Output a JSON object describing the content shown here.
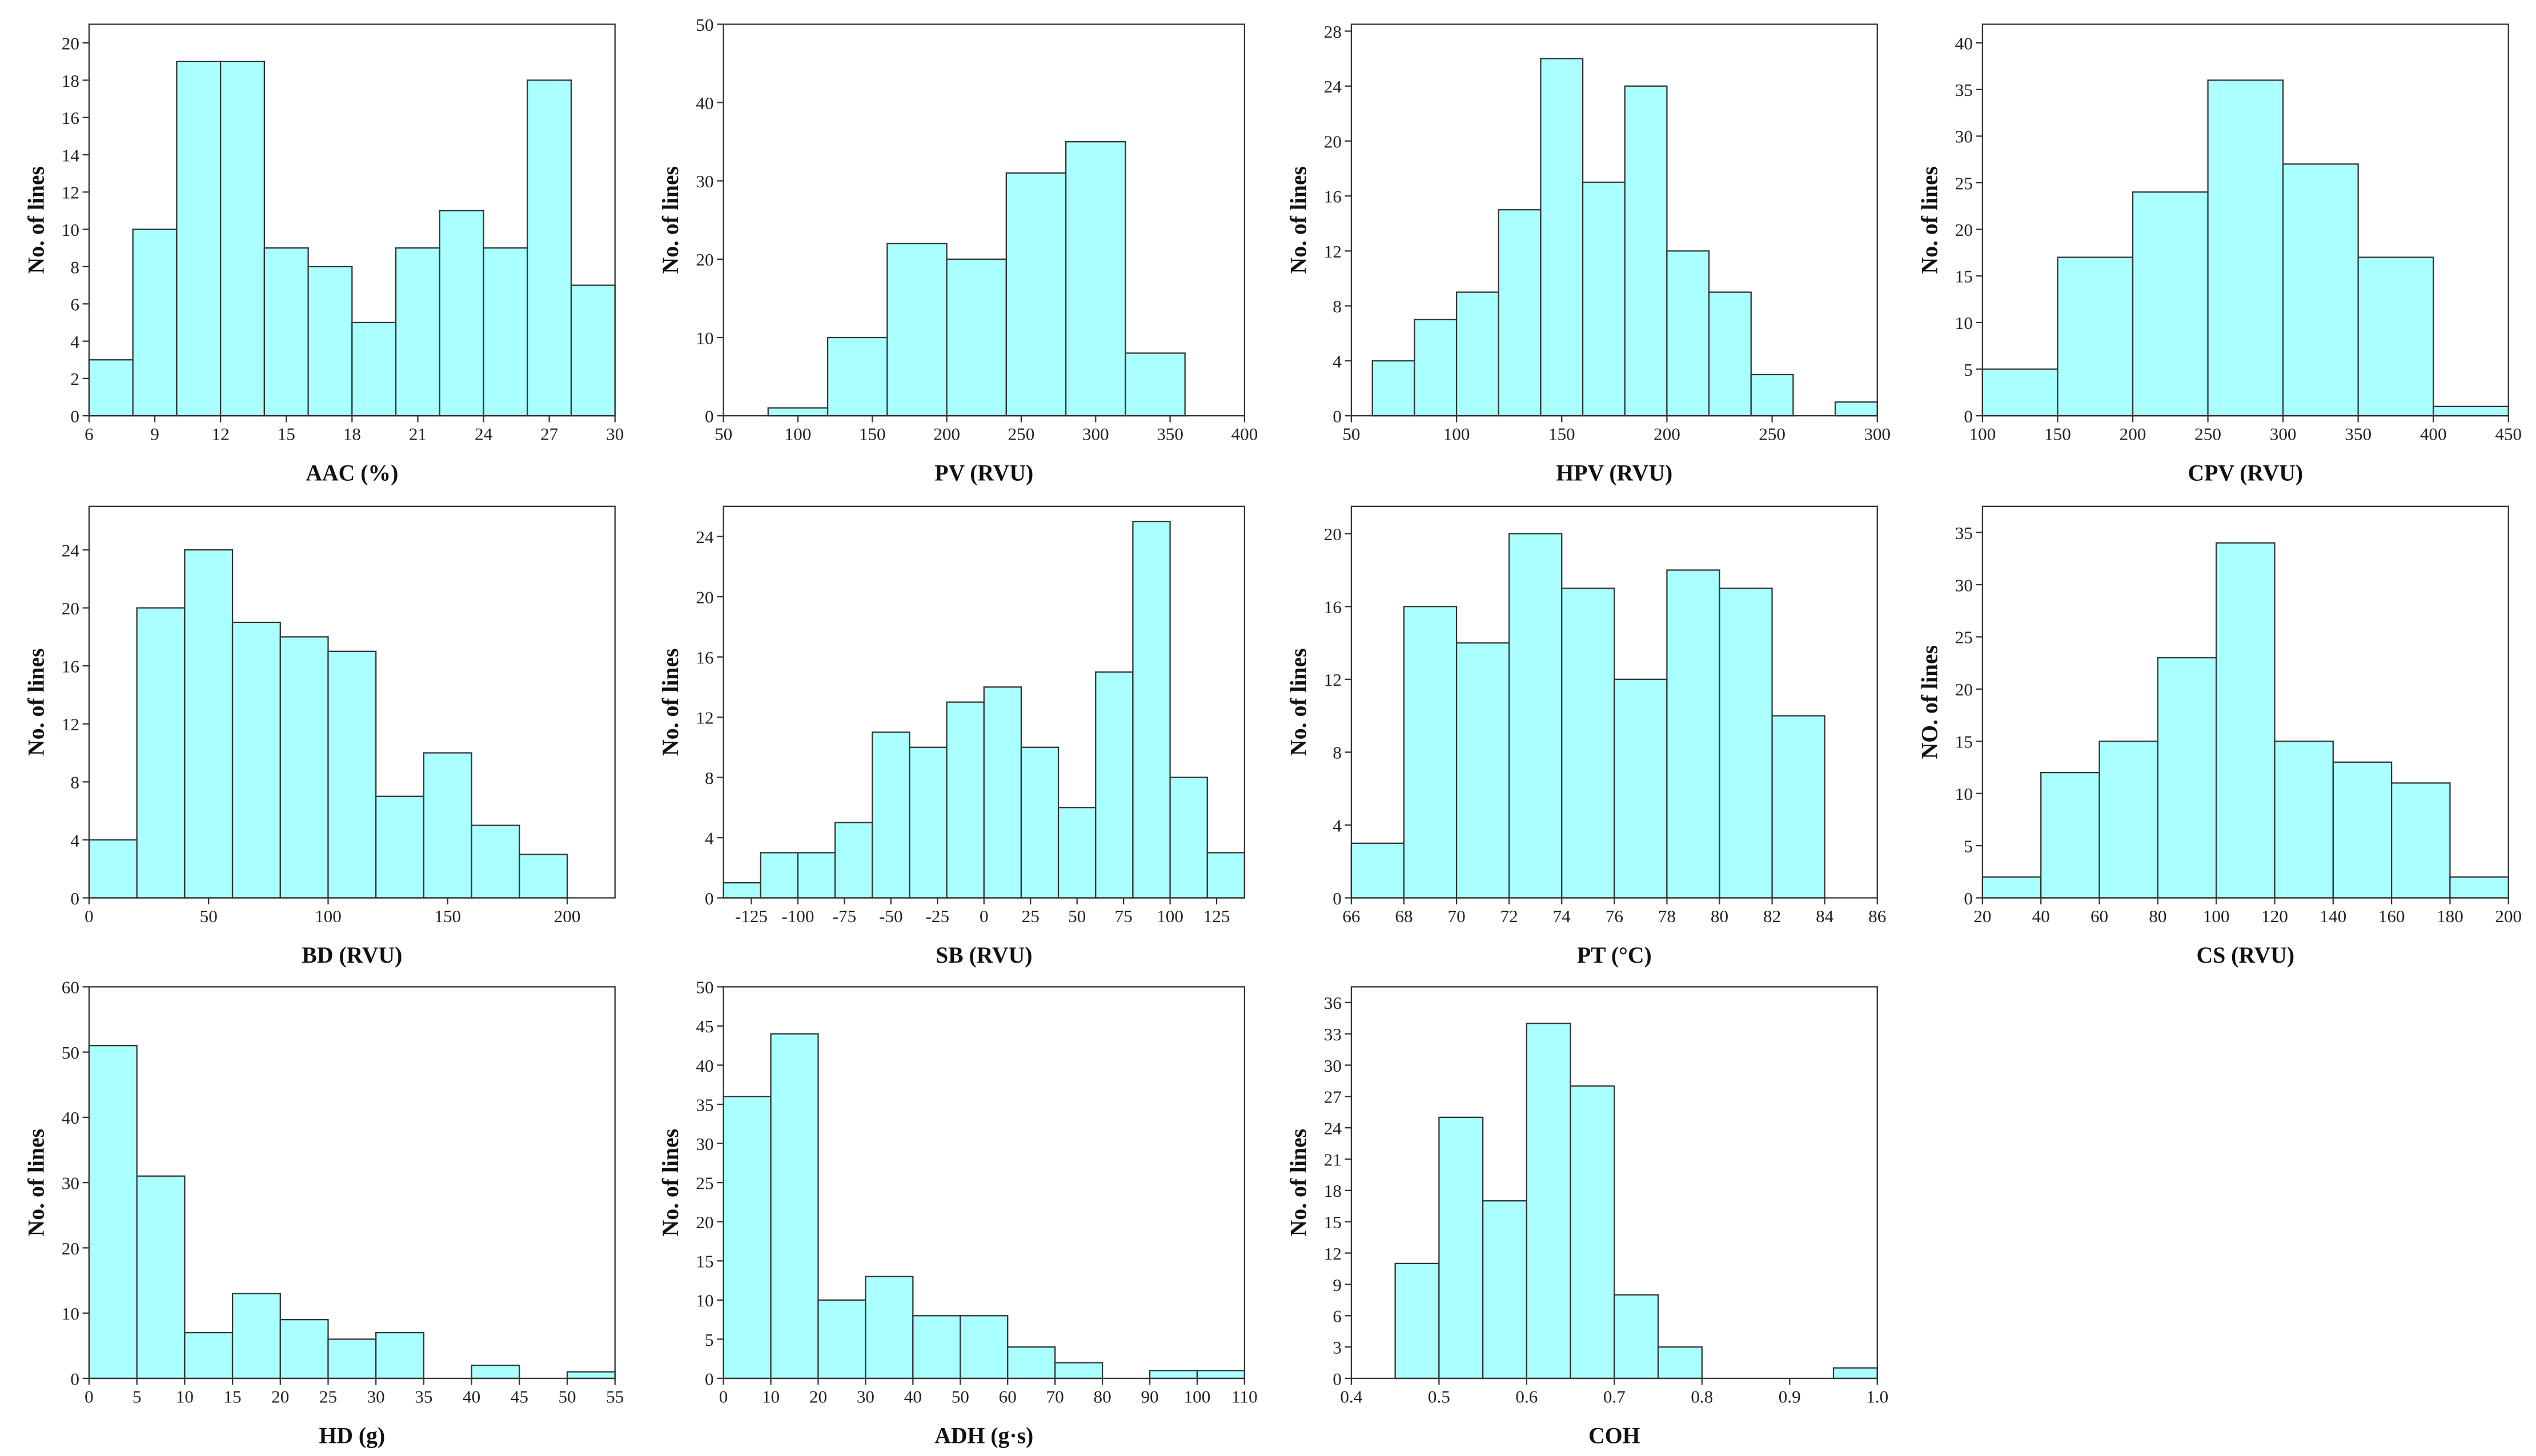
{
  "chart_data": [
    {
      "type": "histogram",
      "xlabel": "AAC (%)",
      "ylabel": "No. of lines",
      "color": "#aaffff",
      "bins": [
        6,
        8,
        10,
        12,
        14,
        16,
        18,
        20,
        22,
        24,
        26,
        28,
        30
      ],
      "counts": [
        3,
        10,
        19,
        19,
        9,
        8,
        5,
        9,
        11,
        9,
        18,
        7
      ],
      "xlim": [
        6,
        30
      ],
      "xticks": [
        6,
        9,
        12,
        15,
        18,
        21,
        24,
        27,
        30
      ],
      "ylim": [
        0,
        21
      ],
      "yticks": [
        0,
        2,
        4,
        6,
        8,
        10,
        12,
        14,
        16,
        18,
        20
      ]
    },
    {
      "type": "histogram",
      "xlabel": "PV (RVU)",
      "ylabel": "No. of lines",
      "color": "#aaffff",
      "bins": [
        80,
        120,
        160,
        200,
        240,
        280,
        320,
        360
      ],
      "counts": [
        1,
        10,
        22,
        20,
        31,
        35,
        8
      ],
      "xlim": [
        50,
        400
      ],
      "xticks": [
        50,
        100,
        150,
        200,
        250,
        300,
        350,
        400
      ],
      "ylim": [
        0,
        50
      ],
      "yticks": [
        0,
        10,
        20,
        30,
        40,
        50
      ]
    },
    {
      "type": "histogram",
      "xlabel": "HPV (RVU)",
      "ylabel": "No. of lines",
      "color": "#aaffff",
      "bins": [
        60,
        80,
        100,
        120,
        140,
        160,
        180,
        200,
        220,
        240,
        260,
        280,
        300
      ],
      "counts": [
        4,
        7,
        9,
        15,
        26,
        17,
        24,
        12,
        9,
        3,
        0,
        1
      ],
      "xlim": [
        50,
        300
      ],
      "xticks": [
        50,
        100,
        150,
        200,
        250,
        300
      ],
      "ylim": [
        0,
        28.5
      ],
      "yticks": [
        0,
        4,
        8,
        12,
        16,
        20,
        24,
        28
      ]
    },
    {
      "type": "histogram",
      "xlabel": "CPV (RVU)",
      "ylabel": "No. of lines",
      "color": "#aaffff",
      "bins": [
        100,
        150,
        200,
        250,
        300,
        350,
        400,
        450
      ],
      "counts": [
        5,
        17,
        24,
        36,
        27,
        17,
        1
      ],
      "xlim": [
        100,
        450
      ],
      "xticks": [
        100,
        150,
        200,
        250,
        300,
        350,
        400,
        450
      ],
      "ylim": [
        0,
        42
      ],
      "yticks": [
        0,
        5,
        10,
        15,
        20,
        25,
        30,
        35,
        40
      ]
    },
    {
      "type": "histogram",
      "xlabel": "BD (RVU)",
      "ylabel": "No. of lines",
      "color": "#aaffff",
      "bins": [
        0,
        20,
        40,
        60,
        80,
        100,
        120,
        140,
        160,
        180,
        200
      ],
      "counts": [
        4,
        20,
        24,
        19,
        18,
        17,
        7,
        10,
        5,
        3
      ],
      "xlim": [
        0,
        220
      ],
      "xticks": [
        0,
        50,
        100,
        150,
        200
      ],
      "ylim": [
        0,
        27
      ],
      "yticks": [
        0,
        4,
        8,
        12,
        16,
        20,
        24
      ]
    },
    {
      "type": "histogram",
      "xlabel": "SB (RVU)",
      "ylabel": "No. of lines",
      "color": "#aaffff",
      "bins": [
        -140,
        -120,
        -100,
        -80,
        -60,
        -40,
        -20,
        0,
        20,
        40,
        60,
        80,
        100,
        120,
        140
      ],
      "counts": [
        1,
        3,
        3,
        5,
        11,
        10,
        13,
        14,
        10,
        6,
        15,
        25,
        8,
        3
      ],
      "xlim": [
        -140,
        140
      ],
      "xticks": [
        -125,
        -100,
        -75,
        -50,
        -25,
        0,
        25,
        50,
        75,
        100,
        125
      ],
      "ylim": [
        0,
        26
      ],
      "yticks": [
        0,
        4,
        8,
        12,
        16,
        20,
        24
      ]
    },
    {
      "type": "histogram",
      "xlabel": "PT (°C)",
      "ylabel": "No. of lines",
      "color": "#aaffff",
      "bins": [
        66,
        68,
        70,
        72,
        74,
        76,
        78,
        80,
        82,
        84
      ],
      "counts": [
        3,
        16,
        14,
        20,
        17,
        12,
        18,
        17,
        10
      ],
      "xlim": [
        66,
        86
      ],
      "xticks": [
        66,
        68,
        70,
        72,
        74,
        76,
        78,
        80,
        82,
        84,
        86
      ],
      "ylim": [
        0,
        21.5
      ],
      "yticks": [
        0,
        4,
        8,
        12,
        16,
        20
      ]
    },
    {
      "type": "histogram",
      "xlabel": "CS (RVU)",
      "ylabel": "NO. of lines",
      "color": "#aaffff",
      "bins": [
        20,
        40,
        60,
        80,
        100,
        120,
        140,
        160,
        180,
        200
      ],
      "counts": [
        2,
        12,
        15,
        23,
        34,
        15,
        13,
        11,
        2
      ],
      "xlim": [
        20,
        200
      ],
      "xticks": [
        20,
        40,
        60,
        80,
        100,
        120,
        140,
        160,
        180,
        200
      ],
      "ylim": [
        0,
        37.5
      ],
      "yticks": [
        0,
        5,
        10,
        15,
        20,
        25,
        30,
        35
      ]
    },
    {
      "type": "histogram",
      "xlabel": "HD (g)",
      "ylabel": "No. of lines",
      "color": "#aaffff",
      "bins": [
        0,
        5,
        10,
        15,
        20,
        25,
        30,
        35,
        40,
        45,
        50,
        55
      ],
      "counts": [
        51,
        31,
        7,
        13,
        9,
        6,
        7,
        0,
        2,
        0,
        1
      ],
      "xlim": [
        0,
        55
      ],
      "xticks": [
        0,
        5,
        10,
        15,
        20,
        25,
        30,
        35,
        40,
        45,
        50,
        55
      ],
      "ylim": [
        0,
        60
      ],
      "yticks": [
        0,
        10,
        20,
        30,
        40,
        50,
        60
      ]
    },
    {
      "type": "histogram",
      "xlabel": "ADH (g·s)",
      "ylabel": "No. of lines",
      "color": "#aaffff",
      "bins": [
        0,
        10,
        20,
        30,
        40,
        50,
        60,
        70,
        80,
        90,
        100,
        110
      ],
      "counts": [
        36,
        44,
        10,
        13,
        8,
        8,
        4,
        2,
        0,
        1,
        1
      ],
      "xlim": [
        0,
        110
      ],
      "xticks": [
        0,
        10,
        20,
        30,
        40,
        50,
        60,
        70,
        80,
        90,
        100,
        110
      ],
      "ylim": [
        0,
        50
      ],
      "yticks": [
        0,
        5,
        10,
        15,
        20,
        25,
        30,
        35,
        40,
        45,
        50
      ]
    },
    {
      "type": "histogram",
      "xlabel": "COH",
      "ylabel": "No. of lines",
      "color": "#aaffff",
      "bins": [
        0.45,
        0.5,
        0.55,
        0.6,
        0.65,
        0.7,
        0.75,
        0.8,
        0.85,
        0.9,
        0.95,
        1.0
      ],
      "counts": [
        11,
        25,
        17,
        34,
        28,
        8,
        3,
        0,
        0,
        0,
        1
      ],
      "xlim": [
        0.4,
        1.0
      ],
      "xticks": [
        0.4,
        0.5,
        0.6,
        0.7,
        0.8,
        0.9,
        {
          "value": 1.0,
          "label": "1.0"
        }
      ],
      "ylim": [
        0,
        37.5
      ],
      "yticks": [
        0,
        3,
        6,
        9,
        12,
        15,
        18,
        21,
        24,
        27,
        30,
        33,
        36
      ]
    }
  ]
}
